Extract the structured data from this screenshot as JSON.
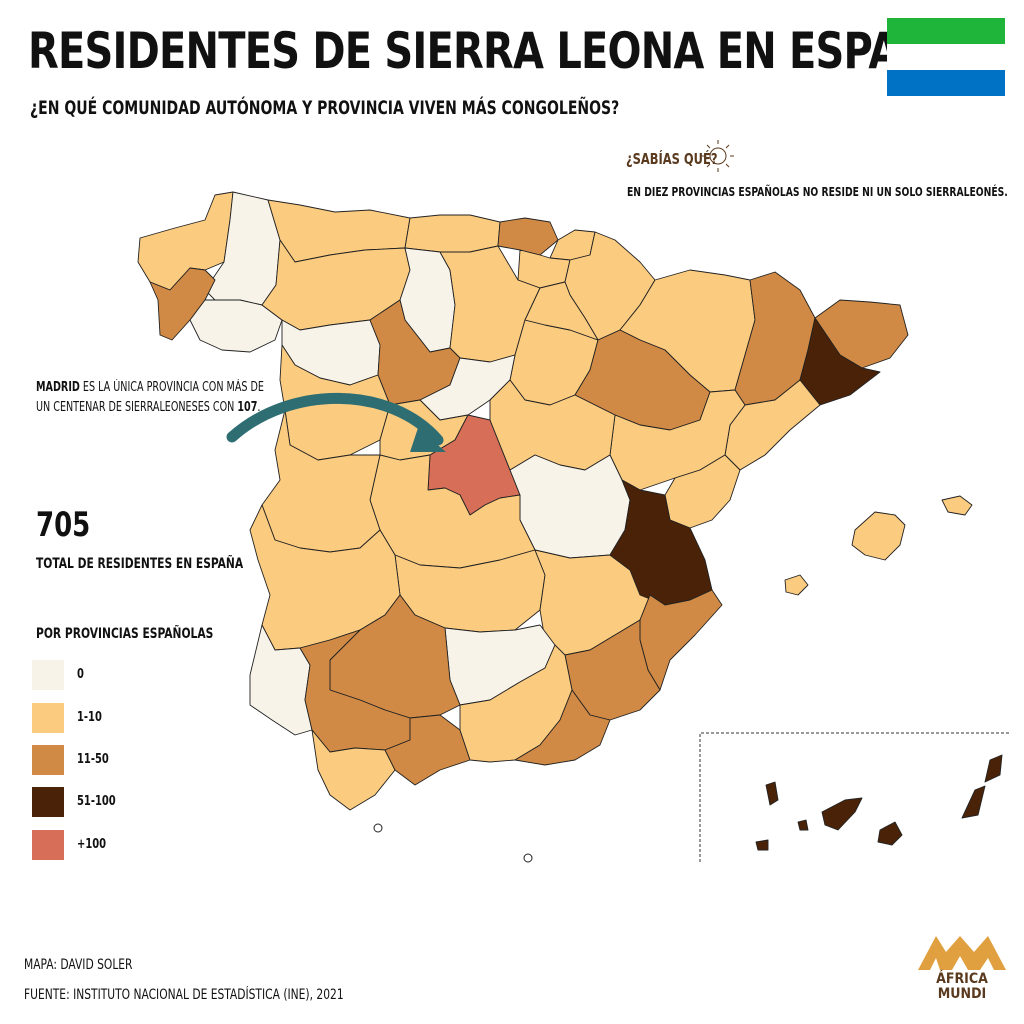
{
  "header": {
    "title": "RESIDENTES DE SIERRA LEONA EN ESPAÑA",
    "subtitle": "¿EN QUÉ COMUNIDAD AUTÓNOMA Y PROVINCIA VIVEN MÁS CONGOLEÑOS?"
  },
  "flag": {
    "top_color": "#1EB53A",
    "middle_color": "#FFFFFF",
    "bottom_color": "#0072C6"
  },
  "fact": {
    "title": "¿SABÍAS QUÉ?",
    "text": "EN DIEZ PROVINCIAS ESPAÑOLAS NO RESIDE NI UN SOLO SIERRALEONÉS."
  },
  "madrid_note": {
    "line1_bold": "MADRID",
    "line1_rest": " ES LA ÚNICA PROVINCIA CON MÁS DE",
    "line2_pre": "UN CENTENAR DE SIERRALEONESES CON ",
    "line2_bold": "107",
    "line2_post": "."
  },
  "total": {
    "value": "705",
    "label": "TOTAL DE RESIDENTES EN ESPAÑA"
  },
  "legend": {
    "title": "POR PROVINCIAS ESPAÑOLAS",
    "items": [
      {
        "label": "0",
        "color": "#F7F3E9"
      },
      {
        "label": "1-10",
        "color": "#FBCB80"
      },
      {
        "label": "11-50",
        "color": "#D08A45"
      },
      {
        "label": "51-100",
        "color": "#4A2208"
      },
      {
        "label": "+100",
        "color": "#D66E58"
      }
    ]
  },
  "arrow_color": "#2E6E73",
  "credits": {
    "map": "MAPA: DAVID SOLER",
    "source": "FUENTE: INSTITUTO NACIONAL DE ESTADÍSTICA (INE), 2021"
  },
  "logo": {
    "line1": "ÁFRICA",
    "line2": "MUNDI",
    "color": "#E0A040"
  }
}
